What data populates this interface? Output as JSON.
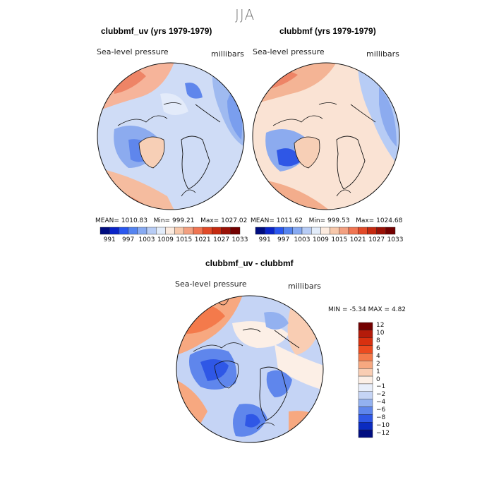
{
  "figure": {
    "season": "JJA",
    "panels": [
      {
        "title": "clubbmf_uv (yrs 1979-1979)",
        "variable": "Sea-level pressure",
        "units": "millibars",
        "stats": {
          "mean_label": "MEAN=",
          "mean": "1010.83",
          "min_label": "Min=",
          "min": "999.21",
          "max_label": "Max=",
          "max": "1027.02"
        }
      },
      {
        "title": "clubbmf (yrs 1979-1979)",
        "variable": "Sea-level pressure",
        "units": "millibars",
        "stats": {
          "mean_label": "MEAN=",
          "mean": "1011.62",
          "min_label": "Min=",
          "min": "999.53",
          "max_label": "Max=",
          "max": "1024.68"
        }
      }
    ],
    "horizontal_colorbar": {
      "labels": [
        "991",
        "997",
        "1003",
        "1009",
        "1015",
        "1021",
        "1027",
        "1033"
      ],
      "colors": [
        "#000d80",
        "#0a24c8",
        "#2a57f0",
        "#5584f0",
        "#87aaf2",
        "#b7ccf5",
        "#e2ecfa",
        "#fcebdf",
        "#f7c8ab",
        "#f3a080",
        "#f07552",
        "#e24a28",
        "#c52a10",
        "#9a1106",
        "#730000"
      ]
    },
    "difference": {
      "title": "clubbmf_uv - clubbmf",
      "variable": "Sea-level pressure",
      "units": "millibars",
      "min_label": "MIN =",
      "min": "-5.34",
      "max_label": "MAX =",
      "max": "4.82",
      "colorbar": {
        "labels": [
          "12",
          "10",
          "8",
          "6",
          "4",
          "2",
          "1",
          "0",
          "−1",
          "−2",
          "−4",
          "−6",
          "−8",
          "−10",
          "−12"
        ],
        "colors": [
          "#730000",
          "#b41b0a",
          "#d8300f",
          "#ec4a1f",
          "#f47a4b",
          "#f7a880",
          "#f9cdb3",
          "#fcefe6",
          "#e8eefa",
          "#c5d4f5",
          "#93b1f0",
          "#5f86ec",
          "#2f57e6",
          "#0b2bc0",
          "#000d80"
        ]
      }
    }
  }
}
